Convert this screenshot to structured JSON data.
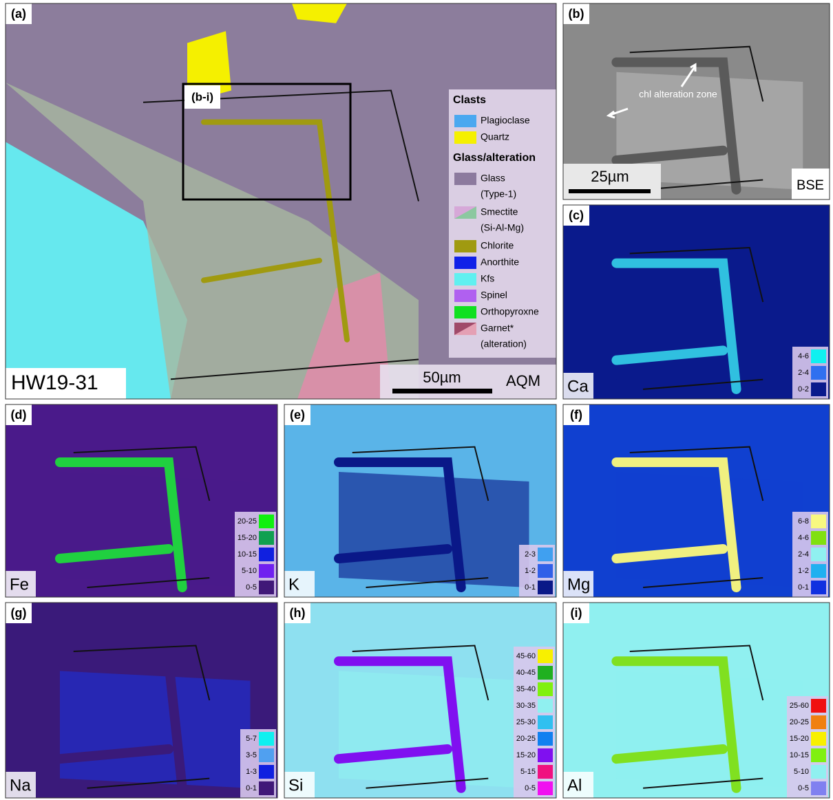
{
  "panels": [
    {
      "label": "(a)",
      "sample": "HW19-31",
      "scale": "50µm",
      "method": "AQM",
      "inset": "(b-i)",
      "legend": [
        {
          "title": "Clasts",
          "items": [
            {
              "label": "Plagioclase",
              "colors": [
                "#4aa8f0"
              ]
            },
            {
              "label": "Quartz",
              "colors": [
                "#f5f000"
              ]
            }
          ]
        },
        {
          "title": "Glass/alteration",
          "items": [
            {
              "label": "Glass",
              "note": "(Type-1)",
              "colors": [
                "#8c7a9e"
              ]
            },
            {
              "label": "Smectite",
              "note": "(Si-Al-Mg)",
              "colors": [
                "#d6a8d8",
                "#8cc8a0"
              ]
            },
            {
              "label": "Chlorite",
              "colors": [
                "#a09a10"
              ]
            },
            {
              "label": "Anorthite",
              "colors": [
                "#1020e8"
              ]
            },
            {
              "label": "Kfs",
              "colors": [
                "#60f0f0"
              ]
            },
            {
              "label": "Spinel",
              "colors": [
                "#b060f0"
              ]
            },
            {
              "label": "Orthopyroxne",
              "colors": [
                "#10e020"
              ]
            },
            {
              "label": "Garnet*",
              "note": "(alteration)",
              "colors": [
                "#a04a6a",
                "#e4a0b4"
              ]
            }
          ]
        }
      ]
    },
    {
      "label": "(b)",
      "annotation": "chl alteration zone",
      "scale": "25µm",
      "method": "BSE"
    },
    {
      "label": "(c)",
      "element": "Ca",
      "legend": [
        {
          "label": "4-6",
          "color": "#10f0f0"
        },
        {
          "label": "2-4",
          "color": "#3070f0"
        },
        {
          "label": "0-2",
          "color": "#0a1a8c"
        }
      ]
    },
    {
      "label": "(d)",
      "element": "Fe",
      "legend": [
        {
          "label": "20-25",
          "color": "#10f010"
        },
        {
          "label": "15-20",
          "color": "#10a050"
        },
        {
          "label": "10-15",
          "color": "#1020e0"
        },
        {
          "label": "5-10",
          "color": "#7020f0"
        },
        {
          "label": "0-5",
          "color": "#401878"
        }
      ]
    },
    {
      "label": "(e)",
      "element": "K",
      "legend": [
        {
          "label": "2-3",
          "color": "#40a0f0"
        },
        {
          "label": "1-2",
          "color": "#3060e8"
        },
        {
          "label": "0-1",
          "color": "#0a1888"
        }
      ]
    },
    {
      "label": "(f)",
      "element": "Mg",
      "legend": [
        {
          "label": "6-8",
          "color": "#f8f880"
        },
        {
          "label": "4-6",
          "color": "#80e010"
        },
        {
          "label": "2-4",
          "color": "#90f0f0"
        },
        {
          "label": "1-2",
          "color": "#20b0f0"
        },
        {
          "label": "0-1",
          "color": "#1030e0"
        }
      ]
    },
    {
      "label": "(g)",
      "element": "Na",
      "legend": [
        {
          "label": "5-7",
          "color": "#10f0f0"
        },
        {
          "label": "3-5",
          "color": "#50a0f0"
        },
        {
          "label": "1-3",
          "color": "#1020e0"
        },
        {
          "label": "0-1",
          "color": "#401878"
        }
      ]
    },
    {
      "label": "(h)",
      "element": "Si",
      "legend": [
        {
          "label": "45-60",
          "color": "#f8f000"
        },
        {
          "label": "40-45",
          "color": "#20b020"
        },
        {
          "label": "35-40",
          "color": "#80f010"
        },
        {
          "label": "30-35",
          "color": "#90f0f0"
        },
        {
          "label": "25-30",
          "color": "#30c0f0"
        },
        {
          "label": "20-25",
          "color": "#1080f0"
        },
        {
          "label": "15-20",
          "color": "#8010f0"
        },
        {
          "label": "5-15",
          "color": "#f01080"
        },
        {
          "label": "0-5",
          "color": "#f010f0"
        }
      ]
    },
    {
      "label": "(i)",
      "element": "Al",
      "legend": [
        {
          "label": "25-60",
          "color": "#f01010"
        },
        {
          "label": "20-25",
          "color": "#f08010"
        },
        {
          "label": "15-20",
          "color": "#f8f000"
        },
        {
          "label": "10-15",
          "color": "#80f010"
        },
        {
          "label": "5-10",
          "color": "#90f0f0"
        },
        {
          "label": "0-5",
          "color": "#8080f0"
        }
      ]
    }
  ]
}
